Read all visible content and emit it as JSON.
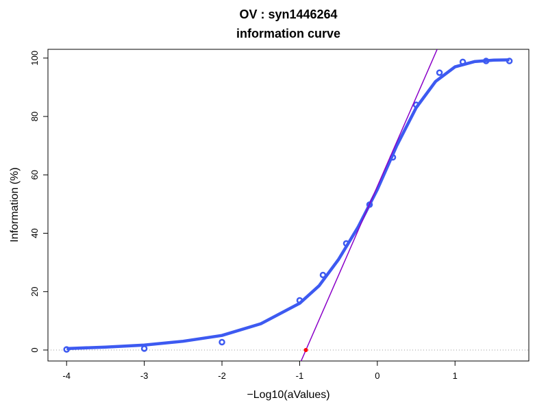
{
  "chart_data": {
    "type": "line",
    "title": "OV : syn1446264",
    "subtitle": "information curve",
    "x_label": "−Log10(aValues)",
    "y_label": "Information (%)",
    "xlim": [
      -4.24,
      1.95
    ],
    "ylim": [
      -3.76,
      103
    ],
    "xticks": [
      -4,
      -3,
      -2,
      -1,
      0,
      1
    ],
    "yticks": [
      0,
      20,
      40,
      60,
      80,
      100
    ],
    "hline": 0,
    "series": [
      {
        "style": "line",
        "color": "#3d5af1",
        "x": [
          -4,
          -3.5,
          -3,
          -2.5,
          -2,
          -1.5,
          -1,
          -0.75,
          -0.5,
          -0.25,
          0,
          0.25,
          0.5,
          0.75,
          1,
          1.25,
          1.5,
          1.7
        ],
        "values": [
          0.5,
          1,
          1.7,
          3,
          5,
          9,
          16,
          22,
          31,
          42,
          55,
          70,
          83,
          92,
          97,
          98.8,
          99.3,
          99.4
        ]
      },
      {
        "style": "points",
        "color": "#3d5af1",
        "x": [
          -4,
          -3,
          -2,
          -1,
          -0.7,
          -0.4,
          -0.1,
          0.2,
          0.5,
          0.8,
          1.1,
          1.4,
          1.7
        ],
        "values": [
          0.2,
          0.5,
          2.7,
          17,
          25.7,
          36.5,
          49.8,
          66,
          84,
          95,
          98.7,
          99,
          99
        ]
      },
      {
        "style": "thin-line",
        "color": "#8a00c8",
        "x": [
          -0.98,
          0.77
        ],
        "values": [
          -3.7,
          103
        ]
      },
      {
        "style": "dot",
        "color": "#ff0000",
        "x": [
          -0.92
        ],
        "values": [
          0
        ]
      }
    ]
  }
}
